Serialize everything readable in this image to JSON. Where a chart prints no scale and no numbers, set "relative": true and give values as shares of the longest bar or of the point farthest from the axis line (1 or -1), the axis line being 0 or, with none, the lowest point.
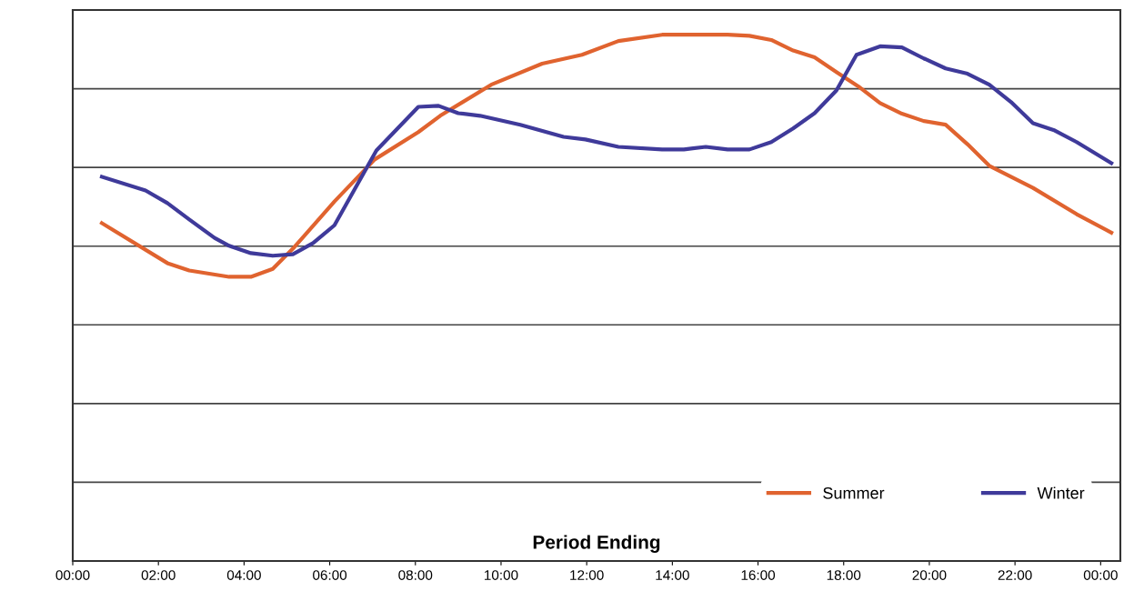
{
  "chart_data": {
    "type": "line",
    "relative": true,
    "xlabel": "Period Ending",
    "xlim": [
      0,
      24.46
    ],
    "xticks": [
      {
        "value": 0,
        "label": "00:00"
      },
      {
        "value": 2,
        "label": "02:00"
      },
      {
        "value": 4,
        "label": "04:00"
      },
      {
        "value": 6,
        "label": "06:00"
      },
      {
        "value": 8,
        "label": "08:00"
      },
      {
        "value": 10,
        "label": "10:00"
      },
      {
        "value": 12,
        "label": "12:00"
      },
      {
        "value": 14,
        "label": "14:00"
      },
      {
        "value": 16,
        "label": "16:00"
      },
      {
        "value": 18,
        "label": "18:00"
      },
      {
        "value": 20,
        "label": "20:00"
      },
      {
        "value": 22,
        "label": "22:00"
      },
      {
        "value": 24,
        "label": "00:00"
      }
    ],
    "grid": "y",
    "legend": "bottom right",
    "marker": "none",
    "line_style": "solid",
    "tick_labels": "x",
    "series": [
      {
        "name": "Summer",
        "color": "#e0632f",
        "x": [
          0.68,
          2.21,
          2.72,
          3.65,
          4.16,
          4.67,
          5.18,
          6.11,
          7.05,
          8.07,
          8.58,
          9.77,
          10.96,
          11.89,
          12.74,
          13.76,
          15.29,
          15.8,
          16.31,
          16.82,
          17.32,
          17.83,
          18.34,
          18.85,
          19.36,
          19.87,
          20.38,
          20.89,
          21.4,
          22.42,
          23.44,
          24.25
        ],
        "values": [
          0.642,
          0.566,
          0.552,
          0.54,
          0.54,
          0.555,
          0.597,
          0.683,
          0.763,
          0.815,
          0.846,
          0.905,
          0.945,
          0.962,
          0.988,
          1.0,
          1.0,
          0.998,
          0.99,
          0.97,
          0.957,
          0.929,
          0.902,
          0.87,
          0.85,
          0.836,
          0.829,
          0.792,
          0.751,
          0.709,
          0.659,
          0.624
        ]
      },
      {
        "name": "Winter",
        "color": "#3f3a9a",
        "x": [
          0.68,
          1.7,
          2.21,
          2.72,
          3.31,
          3.65,
          4.16,
          4.67,
          5.14,
          5.61,
          6.11,
          7.09,
          8.07,
          8.54,
          9.0,
          9.51,
          10.45,
          11.46,
          11.97,
          12.74,
          13.76,
          14.27,
          14.78,
          15.29,
          15.8,
          16.31,
          16.82,
          17.32,
          17.83,
          18.3,
          18.85,
          19.36,
          19.87,
          20.38,
          20.89,
          21.4,
          21.91,
          22.42,
          22.93,
          23.44,
          24.25
        ],
        "values": [
          0.73,
          0.704,
          0.68,
          0.649,
          0.614,
          0.599,
          0.585,
          0.58,
          0.583,
          0.604,
          0.638,
          0.78,
          0.863,
          0.865,
          0.851,
          0.846,
          0.829,
          0.806,
          0.801,
          0.787,
          0.782,
          0.782,
          0.787,
          0.782,
          0.782,
          0.796,
          0.822,
          0.851,
          0.894,
          0.962,
          0.978,
          0.976,
          0.955,
          0.936,
          0.926,
          0.905,
          0.872,
          0.832,
          0.818,
          0.796,
          0.756
        ]
      }
    ]
  }
}
